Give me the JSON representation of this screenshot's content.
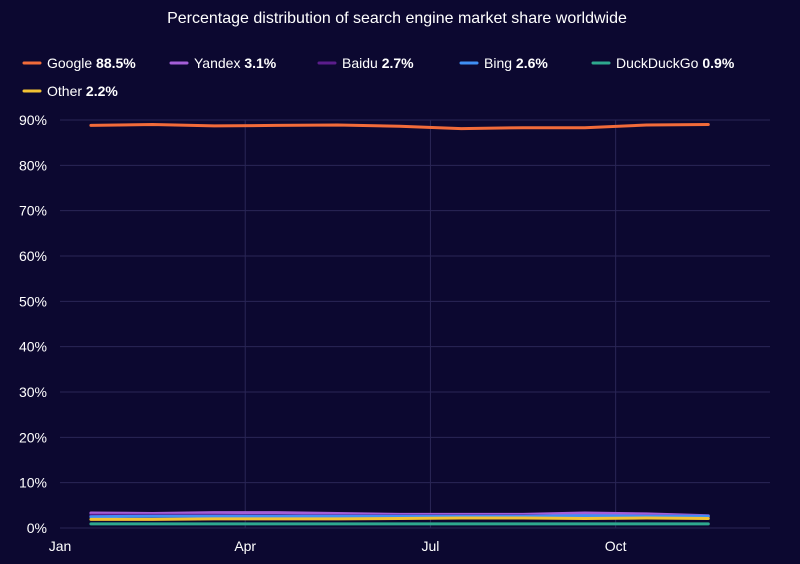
{
  "chart_data": {
    "type": "line",
    "title": "Percentage distribution of search engine market share worldwide",
    "xlabel": "",
    "ylabel": "",
    "x_ticks": [
      {
        "label": "Jan",
        "value": 0
      },
      {
        "label": "Apr",
        "value": 3
      },
      {
        "label": "Jul",
        "value": 6
      },
      {
        "label": "Oct",
        "value": 9
      }
    ],
    "y_ticks": [
      0,
      10,
      20,
      30,
      40,
      50,
      60,
      70,
      80,
      90
    ],
    "y_tick_suffix": "%",
    "ylim": [
      0,
      90
    ],
    "xlim": [
      0,
      11.5
    ],
    "grid": "vertical and horizontal",
    "legend_position": "top-left",
    "x": [
      0.5,
      1.5,
      2.5,
      3.5,
      4.5,
      5.5,
      6.5,
      7.5,
      8.5,
      9.5,
      10.5
    ],
    "series": [
      {
        "name": "Google",
        "legend_value": "88.5%",
        "color": "#f26b3a",
        "values": [
          88.8,
          89.0,
          88.7,
          88.8,
          88.9,
          88.6,
          88.1,
          88.3,
          88.3,
          88.9,
          89.0
        ]
      },
      {
        "name": "Yandex",
        "legend_value": "3.1%",
        "color": "#a45ed8",
        "values": [
          3.3,
          3.2,
          3.4,
          3.4,
          3.2,
          3.0,
          3.0,
          3.0,
          3.3,
          3.1,
          2.7
        ]
      },
      {
        "name": "Baidu",
        "legend_value": "2.7%",
        "color": "#5b1d8c",
        "values": [
          2.8,
          2.8,
          2.8,
          2.7,
          2.7,
          2.7,
          2.7,
          2.7,
          2.6,
          2.6,
          2.6
        ]
      },
      {
        "name": "Bing",
        "legend_value": "2.6%",
        "color": "#3f8ff5",
        "values": [
          2.5,
          2.6,
          2.6,
          2.6,
          2.6,
          2.6,
          2.6,
          2.6,
          2.7,
          2.6,
          2.6
        ]
      },
      {
        "name": "DuckDuckGo",
        "legend_value": "0.9%",
        "color": "#2ea88e",
        "values": [
          0.9,
          0.9,
          0.9,
          0.9,
          0.9,
          0.9,
          0.9,
          0.9,
          0.9,
          0.9,
          0.9
        ]
      },
      {
        "name": "Other",
        "legend_value": "2.2%",
        "color": "#f2c233",
        "values": [
          1.9,
          1.9,
          2.0,
          2.0,
          2.0,
          2.1,
          2.2,
          2.2,
          2.1,
          2.2,
          2.1
        ]
      }
    ]
  }
}
